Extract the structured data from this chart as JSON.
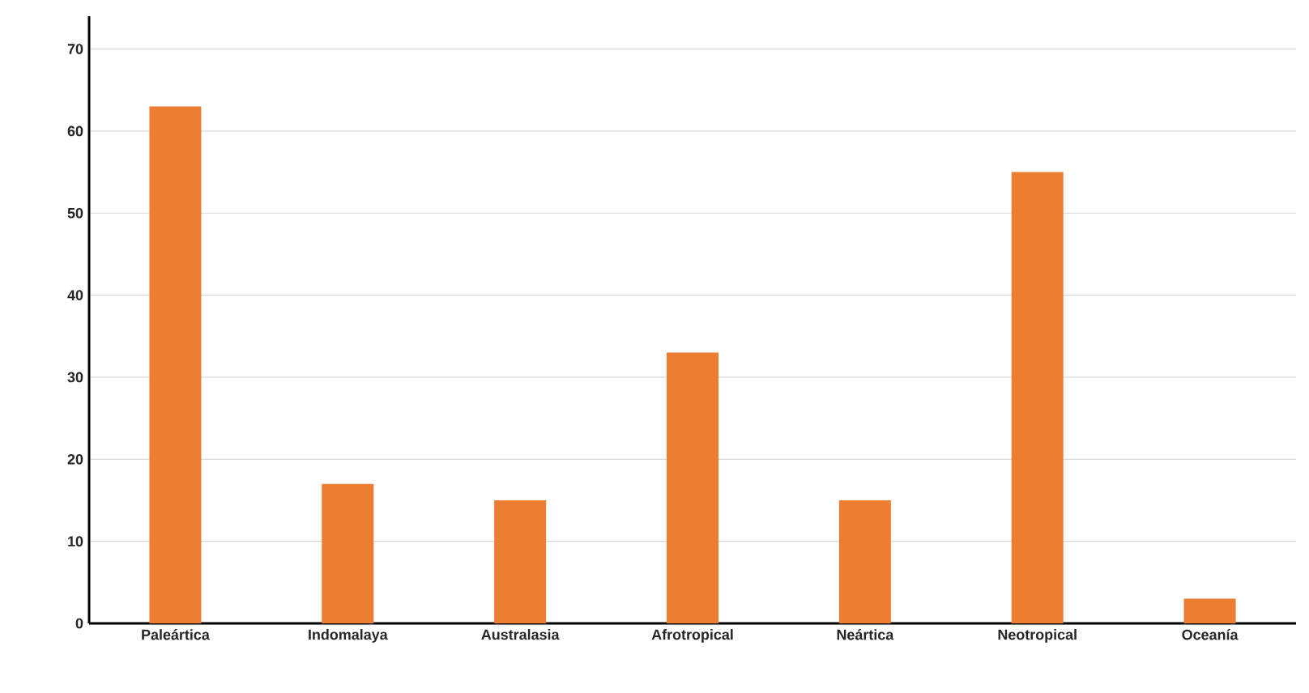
{
  "chart_data": {
    "type": "bar",
    "categories": [
      "Paleártica",
      "Indomalaya",
      "Australasia",
      "Afrotropical",
      "Neártica",
      "Neotropical",
      "Oceanía"
    ],
    "values": [
      63,
      17,
      15,
      33,
      15,
      55,
      3
    ],
    "color": "#ed7d31",
    "ylim": [
      0,
      74
    ],
    "yticks": [
      0,
      10,
      20,
      30,
      40,
      50,
      60,
      70
    ],
    "grid": "y"
  }
}
